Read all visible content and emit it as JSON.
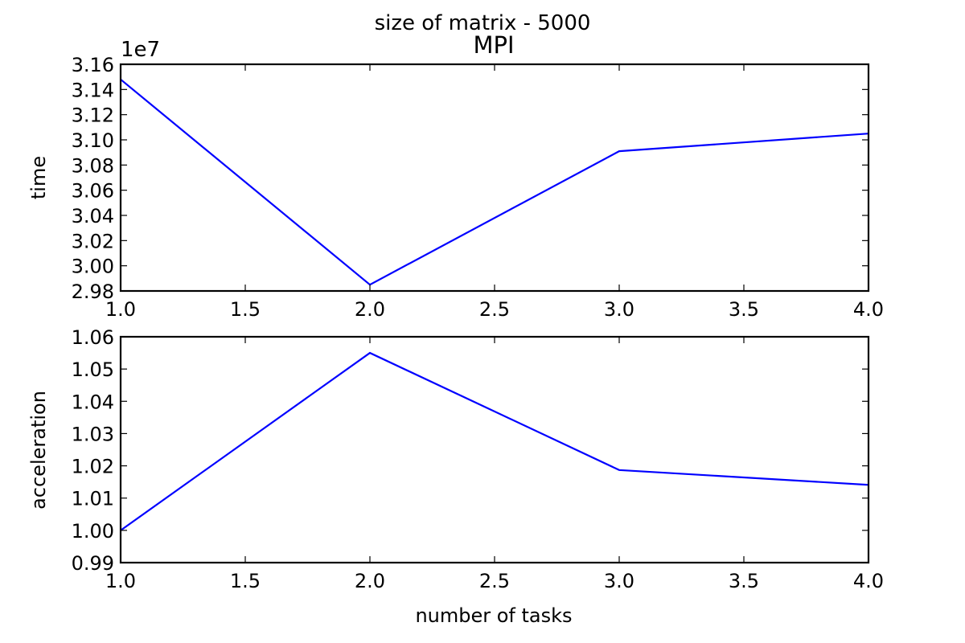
{
  "suptitle": "size of matrix - 5000",
  "chart_data": [
    {
      "type": "line",
      "title": "MPI",
      "xlabel": "",
      "ylabel": "time",
      "y_offset_label": "1e7",
      "x": [
        1.0,
        2.0,
        3.0,
        4.0
      ],
      "series": [
        {
          "values": [
            31480000,
            29850000,
            30910000,
            31050000
          ],
          "color": "#0000ff"
        }
      ],
      "xlim": [
        1.0,
        4.0
      ],
      "ylim": [
        2.98,
        3.16
      ],
      "y_scale_factor": 10000000,
      "xticks": [
        "1.0",
        "1.5",
        "2.0",
        "2.5",
        "3.0",
        "3.5",
        "4.0"
      ],
      "yticks": [
        "2.98",
        "3.00",
        "3.02",
        "3.04",
        "3.06",
        "3.08",
        "3.10",
        "3.12",
        "3.14",
        "3.16"
      ],
      "grid": false
    },
    {
      "type": "line",
      "title": "",
      "xlabel": "number of tasks",
      "ylabel": "acceleration",
      "x": [
        1.0,
        2.0,
        3.0,
        4.0
      ],
      "series": [
        {
          "values": [
            1.0,
            1.055,
            1.0187,
            1.0141
          ],
          "color": "#0000ff"
        }
      ],
      "xlim": [
        1.0,
        4.0
      ],
      "ylim": [
        0.99,
        1.06
      ],
      "xticks": [
        "1.0",
        "1.5",
        "2.0",
        "2.5",
        "3.0",
        "3.5",
        "4.0"
      ],
      "yticks": [
        "0.99",
        "1.00",
        "1.01",
        "1.02",
        "1.03",
        "1.04",
        "1.05",
        "1.06"
      ],
      "grid": false
    }
  ]
}
